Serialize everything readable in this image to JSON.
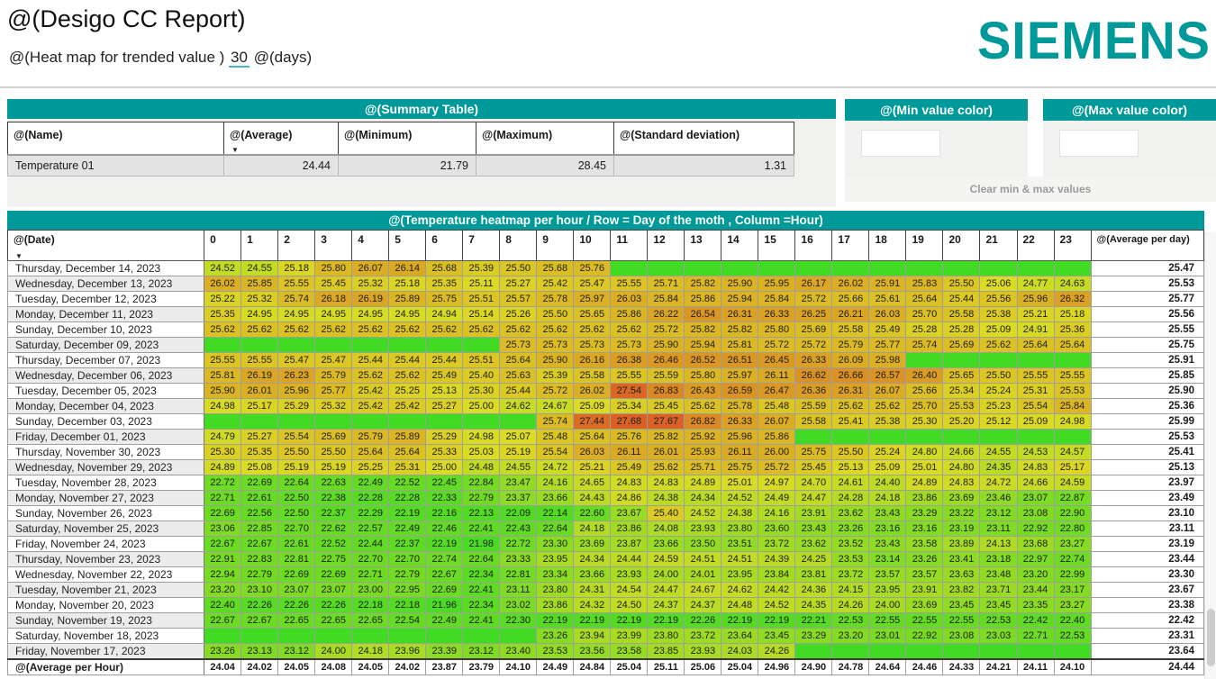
{
  "header": {
    "title": "@(Desigo CC Report)",
    "subtitle_prefix": "@(Heat map for trended value )",
    "days_value": "30",
    "subtitle_suffix": "@(days)",
    "logo": "SIEMENS"
  },
  "colors": {
    "accent_teal": "#009999",
    "scale_min_color": "#47d331",
    "scale_max_color": "#f4533a",
    "panel_bg": "#f1f1ef"
  },
  "summary": {
    "title": "@(Summary Table)",
    "columns": [
      "@(Name)",
      "@(Average)",
      "@(Minimum)",
      "@(Maximum)",
      "@(Standard deviation)"
    ],
    "rows": [
      {
        "name": "Temperature 01",
        "average": "24.44",
        "minimum": "21.79",
        "maximum": "28.45",
        "std": "1.31"
      }
    ]
  },
  "panels": {
    "min": {
      "title": "@(Min value color)",
      "value": ""
    },
    "max": {
      "title": "@(Max value color)",
      "value": ""
    },
    "clear_label": "Clear min & max values"
  },
  "heatmap": {
    "title": "@(Temperature heatmap per hour / Row = Day of the moth , Column =Hour)",
    "date_header": "@(Date)",
    "avg_header": "@(Average per day)",
    "hours": [
      "0",
      "1",
      "2",
      "3",
      "4",
      "5",
      "6",
      "7",
      "8",
      "9",
      "10",
      "11",
      "12",
      "13",
      "14",
      "15",
      "16",
      "17",
      "18",
      "19",
      "20",
      "21",
      "22",
      "23"
    ],
    "scale": {
      "min": 21.79,
      "max": 28.45
    },
    "rows": [
      {
        "date": "Thursday, December 14, 2023",
        "avg": "25.47",
        "values": [
          "24.52",
          "24.55",
          "25.18",
          "25.80",
          "26.07",
          "26.14",
          "25.68",
          "25.39",
          "25.50",
          "25.68",
          "25.76",
          null,
          null,
          null,
          null,
          null,
          null,
          null,
          null,
          null,
          null,
          null,
          null,
          null
        ]
      },
      {
        "date": "Wednesday, December 13, 2023",
        "avg": "25.53",
        "values": [
          "26.02",
          "25.85",
          "25.55",
          "25.45",
          "25.32",
          "25.18",
          "25.35",
          "25.11",
          "25.27",
          "25.42",
          "25.47",
          "25.55",
          "25.71",
          "25.82",
          "25.90",
          "25.95",
          "26.17",
          "26.02",
          "25.91",
          "25.83",
          "25.50",
          "25.06",
          "24.77",
          "24.63"
        ]
      },
      {
        "date": "Tuesday, December 12, 2023",
        "avg": "25.77",
        "values": [
          "25.22",
          "25.32",
          "25.74",
          "26.18",
          "26.19",
          "25.89",
          "25.75",
          "25.51",
          "25.57",
          "25.78",
          "25.97",
          "26.03",
          "25.84",
          "25.86",
          "25.94",
          "25.84",
          "25.72",
          "25.66",
          "25.61",
          "25.64",
          "25.44",
          "25.56",
          "25.96",
          "26.32"
        ]
      },
      {
        "date": "Monday, December 11, 2023",
        "avg": "25.56",
        "values": [
          "25.35",
          "24.95",
          "24.95",
          "24.95",
          "24.95",
          "24.95",
          "24.94",
          "25.14",
          "25.26",
          "25.50",
          "25.65",
          "25.86",
          "26.22",
          "26.54",
          "26.31",
          "26.33",
          "26.25",
          "26.21",
          "26.03",
          "25.70",
          "25.58",
          "25.38",
          "25.21",
          "25.18"
        ]
      },
      {
        "date": "Sunday, December 10, 2023",
        "avg": "25.55",
        "values": [
          "25.62",
          "25.62",
          "25.62",
          "25.62",
          "25.62",
          "25.62",
          "25.62",
          "25.62",
          "25.62",
          "25.62",
          "25.62",
          "25.62",
          "25.72",
          "25.82",
          "25.82",
          "25.80",
          "25.69",
          "25.58",
          "25.49",
          "25.28",
          "25.28",
          "25.09",
          "24.91",
          "25.36"
        ]
      },
      {
        "date": "Saturday, December 09, 2023",
        "avg": "25.75",
        "values": [
          null,
          null,
          null,
          null,
          null,
          null,
          null,
          null,
          "25.73",
          "25.73",
          "25.73",
          "25.73",
          "25.90",
          "25.94",
          "25.81",
          "25.72",
          "25.72",
          "25.79",
          "25.77",
          "25.74",
          "25.69",
          "25.62",
          "25.64",
          "25.64"
        ]
      },
      {
        "date": "Thursday, December 07, 2023",
        "avg": "25.91",
        "values": [
          "25.55",
          "25.55",
          "25.47",
          "25.47",
          "25.44",
          "25.44",
          "25.44",
          "25.51",
          "25.64",
          "25.90",
          "26.16",
          "26.38",
          "26.46",
          "26.52",
          "26.51",
          "26.45",
          "26.33",
          "26.09",
          "25.98",
          null,
          null,
          null,
          null,
          null
        ]
      },
      {
        "date": "Wednesday, December 06, 2023",
        "avg": "25.85",
        "values": [
          "25.81",
          "26.19",
          "26.23",
          "25.79",
          "25.62",
          "25.62",
          "25.49",
          "25.40",
          "25.63",
          "25.39",
          "25.58",
          "25.55",
          "25.59",
          "25.80",
          "25.97",
          "26.11",
          "26.62",
          "26.66",
          "26.57",
          "26.40",
          "25.65",
          "25.50",
          "25.55",
          "25.55"
        ]
      },
      {
        "date": "Tuesday, December 05, 2023",
        "avg": "25.90",
        "values": [
          "25.90",
          "26.01",
          "25.96",
          "25.77",
          "25.42",
          "25.25",
          "25.13",
          "25.30",
          "25.44",
          "25.72",
          "26.02",
          "27.54",
          "26.83",
          "26.43",
          "26.59",
          "26.47",
          "26.36",
          "26.31",
          "26.07",
          "25.66",
          "25.34",
          "25.24",
          "25.31",
          "25.53"
        ]
      },
      {
        "date": "Monday, December 04, 2023",
        "avg": "25.36",
        "values": [
          "24.98",
          "25.17",
          "25.29",
          "25.32",
          "25.42",
          "25.42",
          "25.27",
          "25.00",
          "24.62",
          "24.67",
          "25.09",
          "25.34",
          "25.45",
          "25.62",
          "25.78",
          "25.48",
          "25.59",
          "25.62",
          "25.62",
          "25.70",
          "25.53",
          "25.23",
          "25.54",
          "25.84"
        ]
      },
      {
        "date": "Sunday, December 03, 2023",
        "avg": "25.99",
        "values": [
          null,
          null,
          null,
          null,
          null,
          null,
          null,
          null,
          null,
          "25.74",
          "27.44",
          "27.68",
          "27.67",
          "26.82",
          "26.33",
          "26.07",
          "25.58",
          "25.41",
          "25.38",
          "25.30",
          "25.20",
          "25.12",
          "25.09",
          "24.98"
        ]
      },
      {
        "date": "Friday, December 01, 2023",
        "avg": "25.53",
        "values": [
          "24.79",
          "25.27",
          "25.54",
          "25.69",
          "25.79",
          "25.89",
          "25.29",
          "24.98",
          "25.07",
          "25.48",
          "25.64",
          "25.76",
          "25.82",
          "25.92",
          "25.96",
          "25.86",
          null,
          null,
          null,
          null,
          null,
          null,
          null,
          null
        ]
      },
      {
        "date": "Thursday, November 30, 2023",
        "avg": "25.41",
        "values": [
          "25.30",
          "25.35",
          "25.50",
          "25.50",
          "25.64",
          "25.64",
          "25.33",
          "25.03",
          "25.19",
          "25.54",
          "26.03",
          "26.11",
          "26.01",
          "25.93",
          "26.11",
          "26.00",
          "25.75",
          "25.50",
          "25.24",
          "24.80",
          "24.66",
          "24.55",
          "24.53",
          "24.57"
        ]
      },
      {
        "date": "Wednesday, November 29, 2023",
        "avg": "25.13",
        "values": [
          "24.89",
          "25.08",
          "25.19",
          "25.19",
          "25.25",
          "25.31",
          "25.00",
          "24.48",
          "24.55",
          "24.72",
          "25.21",
          "25.49",
          "25.62",
          "25.71",
          "25.75",
          "25.72",
          "25.45",
          "25.13",
          "25.09",
          "25.01",
          "24.80",
          "24.35",
          "24.83",
          "25.17"
        ]
      },
      {
        "date": "Tuesday, November 28, 2023",
        "avg": "23.97",
        "values": [
          "22.72",
          "22.69",
          "22.64",
          "22.63",
          "22.49",
          "22.52",
          "22.45",
          "22.84",
          "23.47",
          "24.16",
          "24.65",
          "24.83",
          "24.83",
          "24.89",
          "25.01",
          "24.97",
          "24.70",
          "24.61",
          "24.40",
          "24.89",
          "24.83",
          "24.72",
          "24.66",
          "24.59"
        ]
      },
      {
        "date": "Monday, November 27, 2023",
        "avg": "23.49",
        "values": [
          "22.71",
          "22.61",
          "22.50",
          "22.38",
          "22.28",
          "22.28",
          "22.33",
          "22.79",
          "23.37",
          "23.66",
          "24.43",
          "24.86",
          "24.38",
          "24.34",
          "24.52",
          "24.49",
          "24.47",
          "24.28",
          "24.18",
          "23.86",
          "23.69",
          "23.46",
          "23.07",
          "22.87"
        ]
      },
      {
        "date": "Sunday, November 26, 2023",
        "avg": "23.10",
        "values": [
          "22.69",
          "22.56",
          "22.50",
          "22.37",
          "22.29",
          "22.19",
          "22.16",
          "22.13",
          "22.09",
          "22.14",
          "22.60",
          "23.67",
          "25.40",
          "24.52",
          "24.38",
          "24.16",
          "23.91",
          "23.62",
          "23.43",
          "23.29",
          "23.22",
          "23.12",
          "23.08",
          "22.90"
        ]
      },
      {
        "date": "Saturday, November 25, 2023",
        "avg": "23.11",
        "values": [
          "23.06",
          "22.85",
          "22.70",
          "22.62",
          "22.57",
          "22.49",
          "22.46",
          "22.41",
          "22.43",
          "22.64",
          "24.18",
          "23.86",
          "24.08",
          "23.93",
          "23.80",
          "23.60",
          "23.43",
          "23.26",
          "23.16",
          "23.16",
          "23.19",
          "23.11",
          "22.92",
          "22.80"
        ]
      },
      {
        "date": "Friday, November 24, 2023",
        "avg": "23.19",
        "values": [
          "22.67",
          "22.67",
          "22.61",
          "22.52",
          "22.44",
          "22.37",
          "22.19",
          "21.98",
          "22.72",
          "23.30",
          "23.69",
          "23.87",
          "23.66",
          "23.50",
          "23.51",
          "23.72",
          "23.62",
          "23.52",
          "23.43",
          "23.58",
          "23.89",
          "24.13",
          "23.68",
          "23.27"
        ]
      },
      {
        "date": "Thursday, November 23, 2023",
        "avg": "23.44",
        "values": [
          "22.91",
          "22.83",
          "22.81",
          "22.75",
          "22.70",
          "22.70",
          "22.74",
          "22.64",
          "23.33",
          "23.95",
          "24.34",
          "24.44",
          "24.59",
          "24.51",
          "24.51",
          "24.39",
          "24.25",
          "23.53",
          "23.14",
          "23.26",
          "23.41",
          "23.18",
          "22.97",
          "22.74"
        ]
      },
      {
        "date": "Wednesday, November 22, 2023",
        "avg": "23.30",
        "values": [
          "22.94",
          "22.79",
          "22.69",
          "22.69",
          "22.71",
          "22.79",
          "22.67",
          "22.34",
          "22.81",
          "23.34",
          "23.66",
          "23.93",
          "24.00",
          "24.01",
          "23.95",
          "23.84",
          "23.81",
          "23.72",
          "23.57",
          "23.57",
          "23.63",
          "23.48",
          "23.20",
          "22.99"
        ]
      },
      {
        "date": "Tuesday, November 21, 2023",
        "avg": "23.67",
        "values": [
          "23.20",
          "23.10",
          "23.07",
          "23.07",
          "23.00",
          "22.95",
          "22.69",
          "22.41",
          "23.11",
          "23.80",
          "24.31",
          "24.54",
          "24.47",
          "24.67",
          "24.62",
          "24.42",
          "24.36",
          "24.15",
          "23.95",
          "23.91",
          "23.82",
          "23.71",
          "23.44",
          "23.17"
        ]
      },
      {
        "date": "Monday, November 20, 2023",
        "avg": "23.38",
        "values": [
          "22.40",
          "22.26",
          "22.26",
          "22.26",
          "22.18",
          "22.18",
          "21.96",
          "22.34",
          "23.02",
          "23.86",
          "24.32",
          "24.50",
          "24.37",
          "24.37",
          "24.48",
          "24.52",
          "24.35",
          "24.26",
          "24.00",
          "23.69",
          "23.45",
          "23.45",
          "23.35",
          "23.27"
        ]
      },
      {
        "date": "Sunday, November 19, 2023",
        "avg": "22.42",
        "values": [
          "22.67",
          "22.67",
          "22.65",
          "22.65",
          "22.65",
          "22.54",
          "22.49",
          "22.41",
          "22.30",
          "22.19",
          "22.19",
          "22.19",
          "22.19",
          "22.26",
          "22.19",
          "22.19",
          "22.21",
          "22.53",
          "22.55",
          "22.55",
          "22.55",
          "22.53",
          "22.42",
          "22.40"
        ]
      },
      {
        "date": "Saturday, November 18, 2023",
        "avg": "23.31",
        "values": [
          null,
          null,
          null,
          null,
          null,
          null,
          null,
          null,
          null,
          "23.26",
          "23.94",
          "23.99",
          "23.80",
          "23.72",
          "23.64",
          "23.45",
          "23.29",
          "23.20",
          "23.01",
          "22.92",
          "23.08",
          "23.03",
          "22.71",
          "22.53"
        ]
      },
      {
        "date": "Friday, November 17, 2023",
        "avg": "23.64",
        "values": [
          "23.26",
          "23.13",
          "23.12",
          "24.00",
          "24.18",
          "23.96",
          "23.39",
          "23.12",
          "23.40",
          "23.53",
          "23.56",
          "23.58",
          "23.85",
          "23.93",
          "24.03",
          "24.26",
          null,
          null,
          null,
          null,
          null,
          null,
          null,
          null
        ]
      }
    ],
    "footer": {
      "label": "@(Average per Hour)",
      "values": [
        "24.04",
        "24.02",
        "24.05",
        "24.08",
        "24.05",
        "24.02",
        "23.87",
        "23.79",
        "24.10",
        "24.49",
        "24.84",
        "25.04",
        "25.11",
        "25.06",
        "25.04",
        "24.96",
        "24.90",
        "24.78",
        "24.64",
        "24.46",
        "24.33",
        "24.21",
        "24.11",
        "24.10"
      ],
      "avg": "24.44"
    }
  }
}
